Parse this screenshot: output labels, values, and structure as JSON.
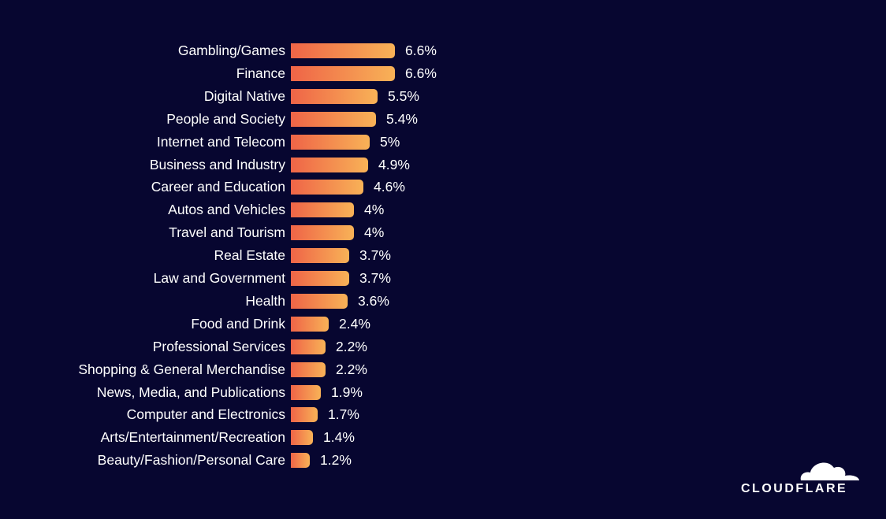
{
  "chart_data": {
    "type": "bar",
    "orientation": "horizontal",
    "title": "",
    "xlabel": "",
    "ylabel": "",
    "grid": false,
    "categories": [
      "Gambling/Games",
      "Finance",
      "Digital Native",
      "People and Society",
      "Internet and Telecom",
      "Business and Industry",
      "Career and Education",
      "Autos and Vehicles",
      "Travel and Tourism",
      "Real Estate",
      "Law and Government",
      "Health",
      "Food and Drink",
      "Professional Services",
      "Shopping & General Merchandise",
      "News, Media, and Publications",
      "Computer and Electronics",
      "Arts/Entertainment/Recreation",
      "Beauty/Fashion/Personal Care"
    ],
    "values": [
      6.6,
      6.6,
      5.5,
      5.4,
      5,
      4.9,
      4.6,
      4,
      4,
      3.7,
      3.7,
      3.6,
      2.4,
      2.2,
      2.2,
      1.9,
      1.7,
      1.4,
      1.2
    ],
    "labels": [
      "6.6%",
      "6.6%",
      "5.5%",
      "5.4%",
      "5%",
      "4.9%",
      "4.6%",
      "4%",
      "4%",
      "3.7%",
      "3.7%",
      "3.6%",
      "2.4%",
      "2.2%",
      "2.2%",
      "1.9%",
      "1.7%",
      "1.4%",
      "1.2%"
    ],
    "colors": {
      "bar_start": "#ef6447",
      "bar_end": "#f8b257",
      "background": "#070630"
    }
  },
  "logo": {
    "text": "CLOUDFLARE"
  }
}
